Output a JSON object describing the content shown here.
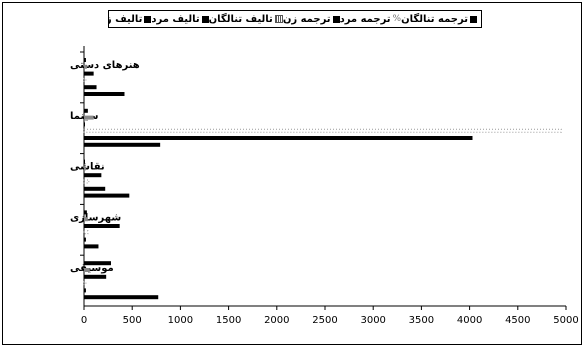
{
  "chart_data": {
    "type": "bar",
    "orientation": "horizontal",
    "title": "",
    "xlabel": "",
    "ylabel": "",
    "xlim": [
      0,
      5000
    ],
    "xticks": [
      0,
      500,
      1000,
      1500,
      2000,
      2500,
      3000,
      3500,
      4000,
      4500,
      5000
    ],
    "legend_position": "top",
    "grid": false,
    "categories": [
      "هنرهای دستی",
      "سینما",
      "نقاشی",
      "شهرسازی",
      "موسیقی"
    ],
    "series": [
      {
        "name": "ترجمه تنالگان",
        "color": "#000000",
        "values": [
          20,
          40,
          10,
          30,
          280
        ]
      },
      {
        "name": "ترجمه مرد",
        "color": "#888888",
        "values": [
          30,
          100,
          20,
          40,
          60
        ]
      },
      {
        "name": "ترجمه زن",
        "color": "#000000",
        "values": [
          100,
          10,
          180,
          370,
          230
        ]
      },
      {
        "name": "تالیف تنالگان",
        "color": "#aaaaaa",
        "values": [
          20,
          4950,
          50,
          40,
          20
        ]
      },
      {
        "name": "تالیف مرد",
        "color": "#000000",
        "values": [
          130,
          4030,
          220,
          20,
          20
        ]
      },
      {
        "name": "تالیف زن",
        "color": "#000000",
        "values": [
          420,
          790,
          470,
          150,
          770
        ]
      }
    ]
  },
  "legend_items": [
    {
      "label": "ترجمه تنالگان",
      "icon": "filled-square"
    },
    {
      "label": "ترجمه مرد",
      "icon": "slash-marker"
    },
    {
      "label": "ترجمه زن",
      "icon": "filled-square"
    },
    {
      "label": "تالیف تنالگان",
      "icon": "dotted-square"
    },
    {
      "label": "تالیف مرد",
      "icon": "filled-square"
    },
    {
      "label": "تالیف زن",
      "icon": "filled-square"
    }
  ]
}
